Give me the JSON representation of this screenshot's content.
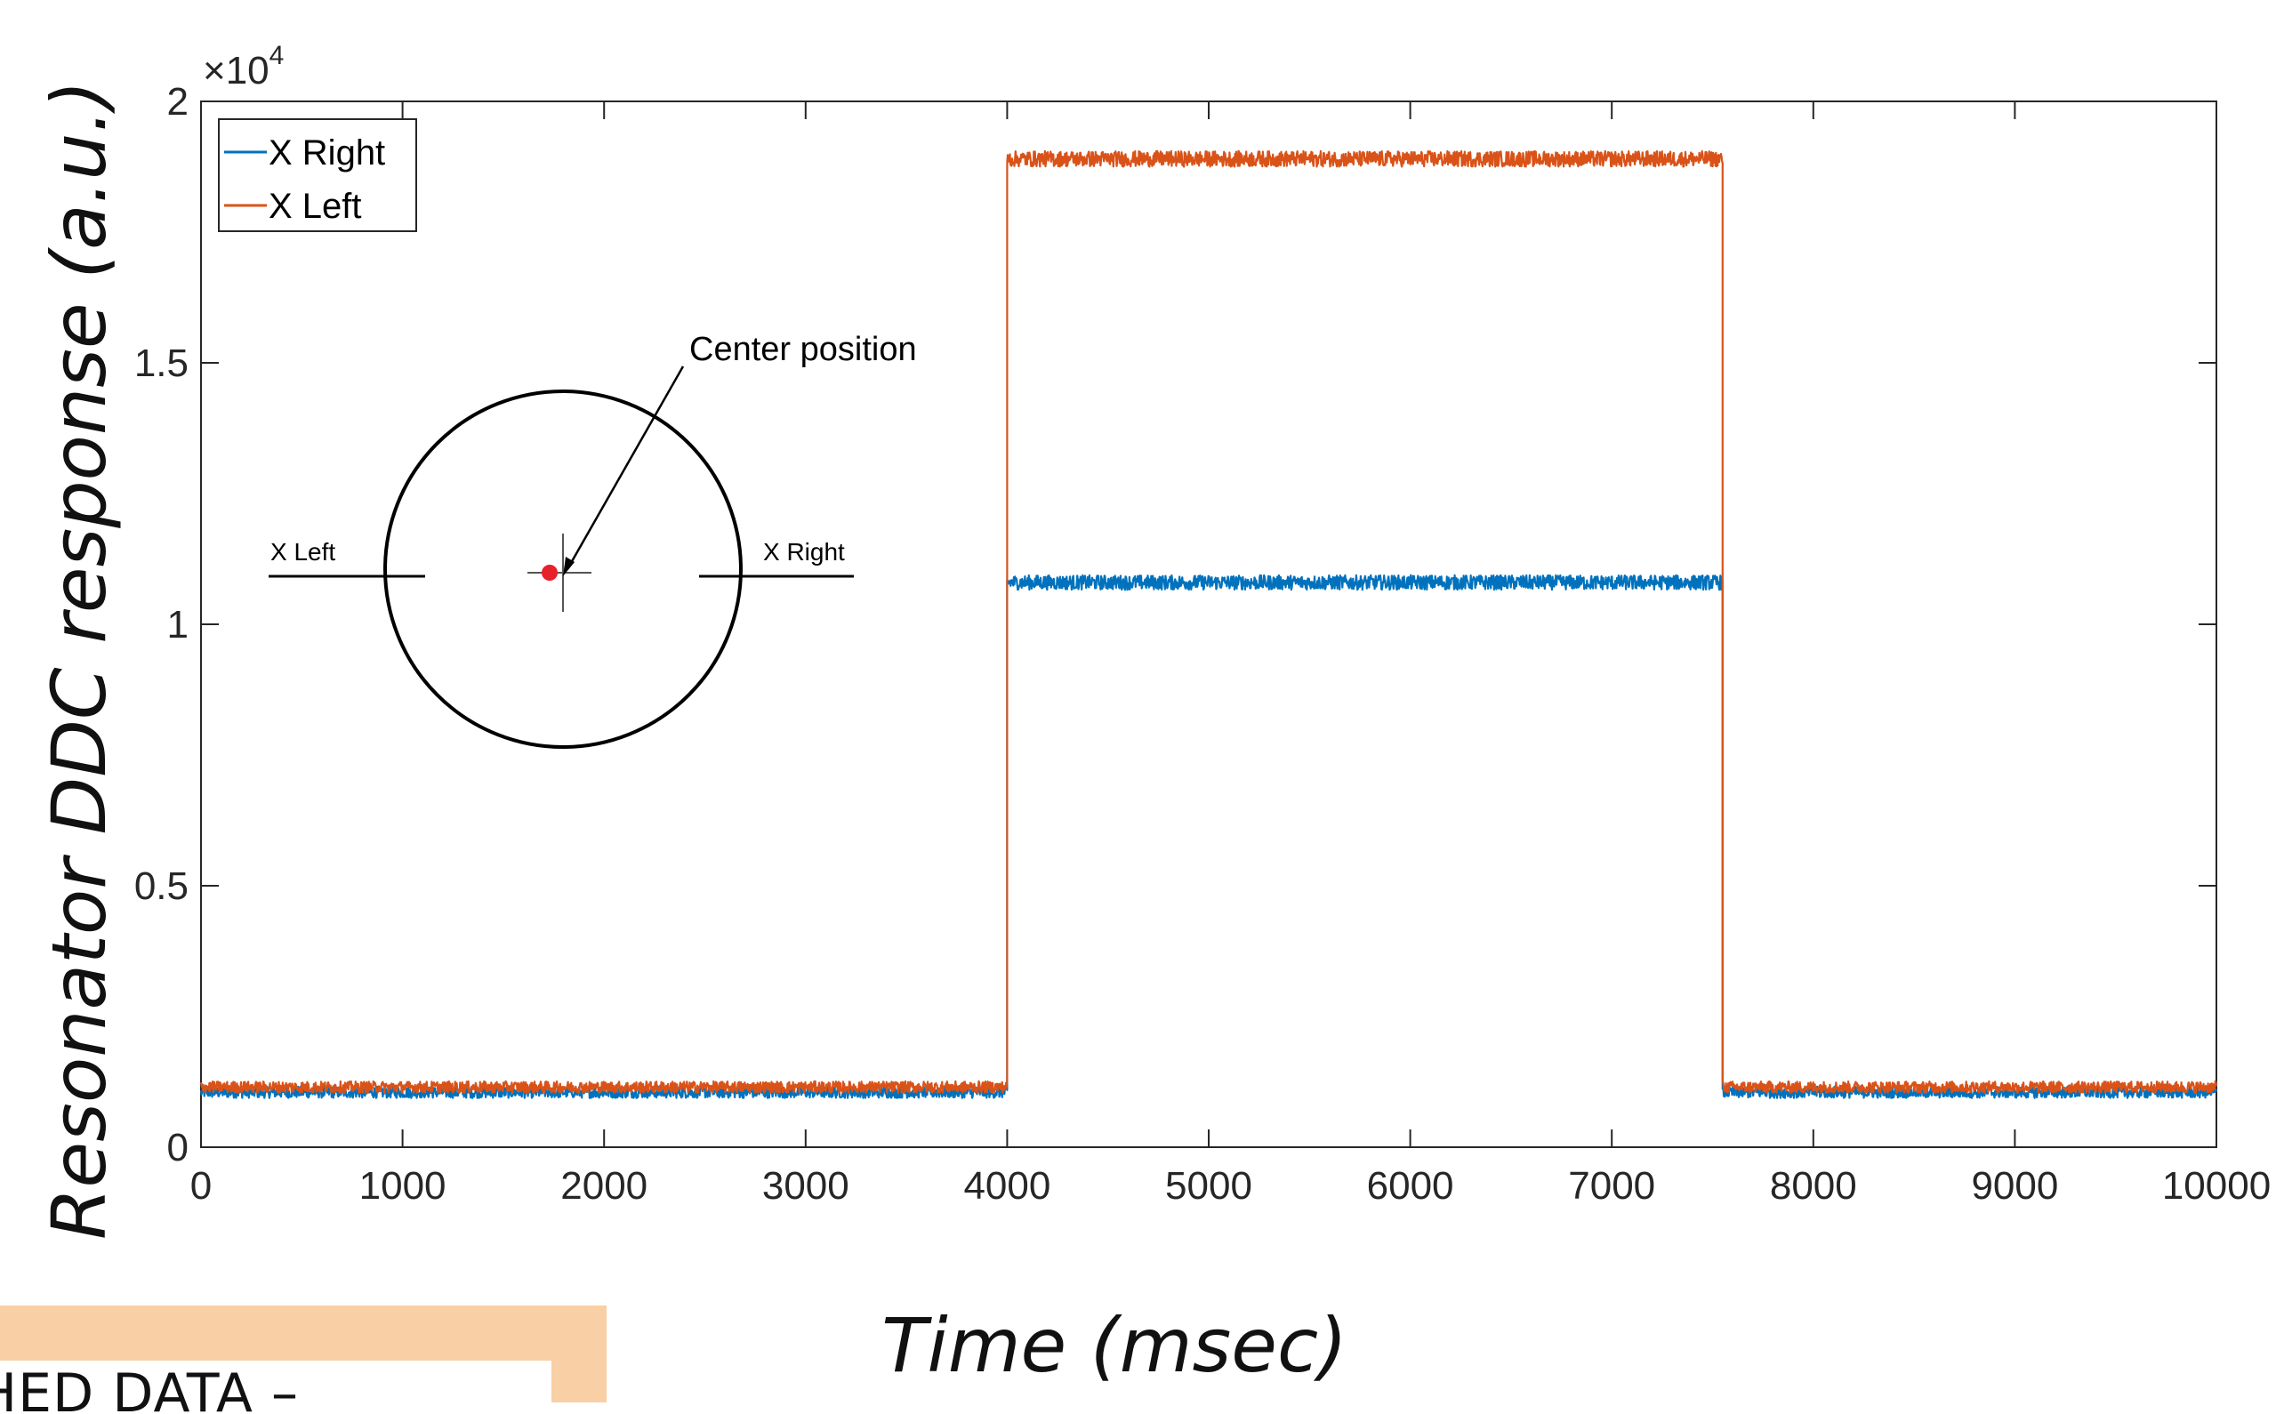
{
  "chart_data": {
    "type": "line",
    "xlabel": "Time (msec)",
    "ylabel": "Resonator DDC response (a.u.)",
    "y_exponent_label": "×10",
    "y_exponent_power": "4",
    "xlim": [
      0,
      10000
    ],
    "ylim": [
      0,
      20000
    ],
    "x_ticks": [
      0,
      1000,
      2000,
      3000,
      4000,
      5000,
      6000,
      7000,
      8000,
      9000,
      10000
    ],
    "x_tick_labels": [
      "0",
      "1000",
      "2000",
      "3000",
      "4000",
      "5000",
      "6000",
      "7000",
      "8000",
      "9000",
      "10000"
    ],
    "y_ticks": [
      0,
      5000,
      10000,
      15000,
      20000
    ],
    "y_tick_labels": [
      "0",
      "0.5",
      "1",
      "1.5",
      "2"
    ],
    "grid": false,
    "legend_position": "top-left",
    "series": [
      {
        "name": "X Right",
        "color": "#0072bd",
        "segments": [
          {
            "x_start": 0,
            "x_end": 4000,
            "level": 1050,
            "noise": 110
          },
          {
            "x_start": 4000,
            "x_end": 7550,
            "level": 10800,
            "noise": 140
          },
          {
            "x_start": 7550,
            "x_end": 10000,
            "level": 1050,
            "noise": 110
          }
        ]
      },
      {
        "name": "X Left",
        "color": "#d95319",
        "segments": [
          {
            "x_start": 0,
            "x_end": 4000,
            "level": 1150,
            "noise": 110
          },
          {
            "x_start": 4000,
            "x_end": 7550,
            "level": 18900,
            "noise": 150
          },
          {
            "x_start": 7550,
            "x_end": 10000,
            "level": 1150,
            "noise": 110
          }
        ]
      }
    ],
    "inset": {
      "center_annotation": "Center position",
      "left_label": "X Left",
      "right_label": "X Right",
      "marker_color": "#e8202a"
    }
  },
  "banner": {
    "text": "HED DATA –"
  }
}
